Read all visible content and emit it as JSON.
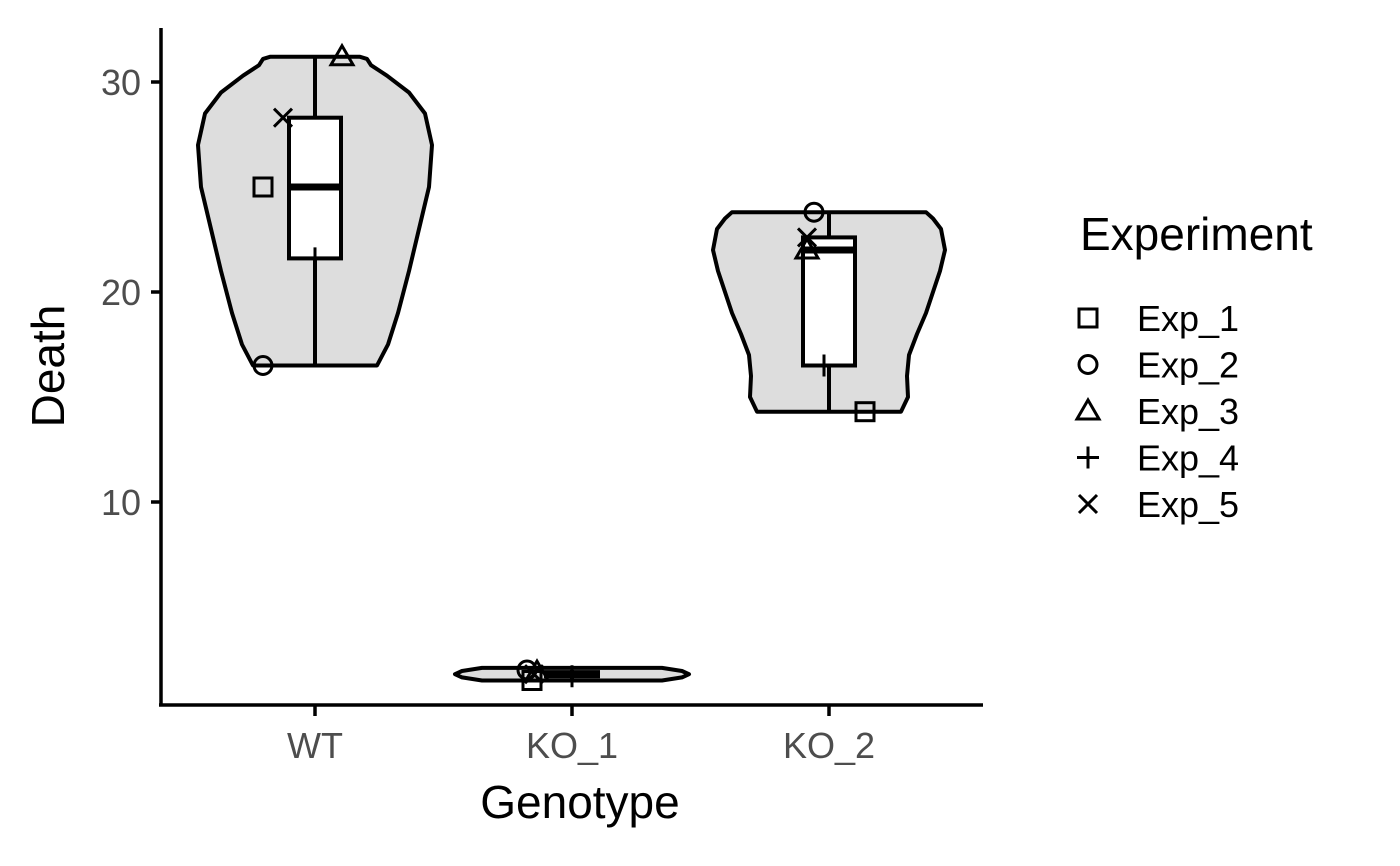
{
  "chart_data": {
    "type": "violin",
    "xlabel": "Genotype",
    "ylabel": "Death",
    "categories": [
      "WT",
      "KO_1",
      "KO_2"
    ],
    "y_ticks": [
      10,
      20,
      30
    ],
    "ylim": [
      1.0,
      32.5
    ],
    "fill_color": "#dddddd",
    "box_fill": "#ffffff",
    "groups": [
      {
        "category": "WT",
        "points": [
          {
            "experiment": "Exp_1",
            "y": 25.0
          },
          {
            "experiment": "Exp_2",
            "y": 16.5
          },
          {
            "experiment": "Exp_3",
            "y": 31.2
          },
          {
            "experiment": "Exp_4",
            "y": 21.6
          },
          {
            "experiment": "Exp_5",
            "y": 28.3
          }
        ],
        "box": {
          "q1": 21.6,
          "median": 25.0,
          "q3": 28.3,
          "min": 16.5,
          "max": 31.2
        }
      },
      {
        "category": "KO_1",
        "points": [
          {
            "experiment": "Exp_1",
            "y": 1.5
          },
          {
            "experiment": "Exp_2",
            "y": 2.0
          },
          {
            "experiment": "Exp_3",
            "y": 1.9
          },
          {
            "experiment": "Exp_4",
            "y": 1.7
          },
          {
            "experiment": "Exp_5",
            "y": 1.8
          }
        ],
        "box": {
          "q1": 1.7,
          "median": 1.8,
          "q3": 1.9,
          "min": 1.5,
          "max": 2.0
        }
      },
      {
        "category": "KO_2",
        "points": [
          {
            "experiment": "Exp_1",
            "y": 14.3
          },
          {
            "experiment": "Exp_2",
            "y": 23.8
          },
          {
            "experiment": "Exp_3",
            "y": 22.0
          },
          {
            "experiment": "Exp_4",
            "y": 16.5
          },
          {
            "experiment": "Exp_5",
            "y": 22.6
          }
        ],
        "box": {
          "q1": 16.5,
          "median": 22.0,
          "q3": 22.6,
          "min": 14.3,
          "max": 23.8
        }
      }
    ],
    "legend": {
      "title": "Experiment",
      "position": "right",
      "entries": [
        {
          "label": "Exp_1",
          "shape": "square"
        },
        {
          "label": "Exp_2",
          "shape": "circle"
        },
        {
          "label": "Exp_3",
          "shape": "triangle"
        },
        {
          "label": "Exp_4",
          "shape": "plus"
        },
        {
          "label": "Exp_5",
          "shape": "cross"
        }
      ]
    }
  }
}
